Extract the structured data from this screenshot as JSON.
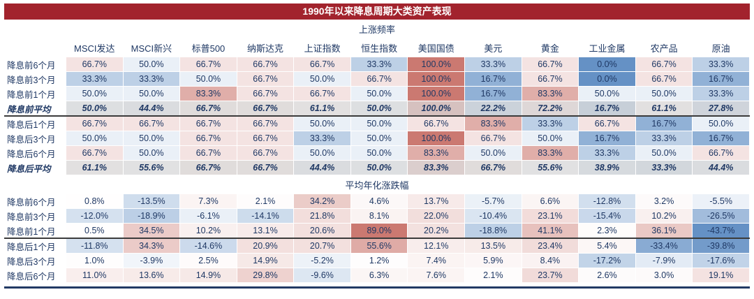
{
  "title": "1990年以来降息周期大类资产表现",
  "colors": {
    "title_bg": "#a2232d",
    "title_text": "#ffffff",
    "text": "#1f3864",
    "avg_row_gray": "#d9d9d9",
    "separator_line": "#3b3b3b",
    "bottom_rule": "#223a64",
    "heat_max_red": "#cb7971",
    "heat_min_blue": "#6591c5",
    "heat_mid_white": "#ffffff"
  },
  "chart_data": [
    {
      "type": "heatmap",
      "title": "上涨频率",
      "columns": [
        "MSCI发达",
        "MSCI新兴",
        "标普500",
        "纳斯达克",
        "上证指数",
        "恒生指数",
        "美国国债",
        "美元",
        "黄金",
        "工业金属",
        "农产品",
        "原油"
      ],
      "row_labels": [
        "降息前6个月",
        "降息前3个月",
        "降息前1个月",
        "降息前平均",
        "降息后1个月",
        "降息后3个月",
        "降息后6个月",
        "降息后平均"
      ],
      "avg_rows": [
        3,
        7
      ],
      "separator_after_row": 3,
      "value_format": "percent_1dp",
      "values": [
        [
          66.7,
          50.0,
          66.7,
          66.7,
          66.7,
          33.3,
          100.0,
          33.3,
          66.7,
          0.0,
          66.7,
          33.3
        ],
        [
          33.3,
          33.3,
          50.0,
          66.7,
          50.0,
          66.7,
          100.0,
          16.7,
          66.7,
          0.0,
          66.7,
          16.7
        ],
        [
          50.0,
          50.0,
          83.3,
          66.7,
          66.7,
          50.0,
          100.0,
          16.7,
          83.3,
          50.0,
          50.0,
          33.3
        ],
        [
          50.0,
          44.4,
          66.7,
          66.7,
          61.1,
          50.0,
          100.0,
          22.2,
          72.2,
          16.7,
          61.1,
          27.8
        ],
        [
          66.7,
          66.7,
          66.7,
          66.7,
          50.0,
          50.0,
          66.7,
          83.3,
          33.3,
          66.7,
          16.7,
          50.0
        ],
        [
          50.0,
          50.0,
          66.7,
          66.7,
          33.3,
          50.0,
          100.0,
          66.7,
          50.0,
          16.7,
          33.3,
          16.7
        ],
        [
          66.7,
          50.0,
          66.7,
          66.7,
          50.0,
          50.0,
          83.3,
          50.0,
          83.3,
          33.3,
          50.0,
          66.7
        ],
        [
          61.1,
          55.6,
          66.7,
          66.7,
          44.4,
          50.0,
          83.3,
          66.7,
          55.6,
          38.9,
          33.3,
          44.4
        ]
      ],
      "color_scale": {
        "min": 0,
        "mid": 58,
        "max": 100,
        "min_color": "#6591c5",
        "mid_color": "#ffffff",
        "max_color": "#cb7971"
      }
    },
    {
      "type": "heatmap",
      "title": "平均年化涨跌幅",
      "columns": [
        "MSCI发达",
        "MSCI新兴",
        "标普500",
        "纳斯达克",
        "上证指数",
        "恒生指数",
        "美国国债",
        "美元",
        "黄金",
        "工业金属",
        "农产品",
        "原油"
      ],
      "row_labels": [
        "降息前6个月",
        "降息前3个月",
        "降息前1个月",
        "降息后1个月",
        "降息后3个月",
        "降息后6个月"
      ],
      "avg_rows": [],
      "separator_after_row": 2,
      "value_format": "percent_1dp",
      "values": [
        [
          0.8,
          -13.5,
          7.3,
          2.1,
          34.2,
          4.6,
          13.7,
          -5.7,
          6.6,
          -12.8,
          3.2,
          -5.5
        ],
        [
          -12.0,
          -18.9,
          -6.1,
          -14.1,
          21.8,
          8.1,
          22.0,
          -10.4,
          23.1,
          -15.4,
          10.2,
          -26.5
        ],
        [
          0.5,
          34.5,
          10.2,
          13.1,
          20.6,
          89.0,
          20.2,
          -18.8,
          41.1,
          2.3,
          36.1,
          -43.7
        ],
        [
          -11.8,
          34.3,
          -14.6,
          20.9,
          20.7,
          55.6,
          12.1,
          13.5,
          23.4,
          5.4,
          -33.4,
          -39.8
        ],
        [
          1.0,
          -3.9,
          2.5,
          14.9,
          -5.2,
          1.2,
          7.4,
          5.9,
          8.4,
          -17.2,
          -7.9,
          -17.6
        ],
        [
          11.0,
          13.6,
          14.9,
          29.8,
          -9.6,
          6.3,
          7.6,
          2.1,
          23.7,
          2.6,
          3.0,
          19.1
        ]
      ],
      "color_scale": {
        "min": -43.7,
        "mid": 0,
        "max": 89.0,
        "min_color": "#6591c5",
        "mid_color": "#ffffff",
        "max_color": "#cb7971"
      }
    }
  ]
}
